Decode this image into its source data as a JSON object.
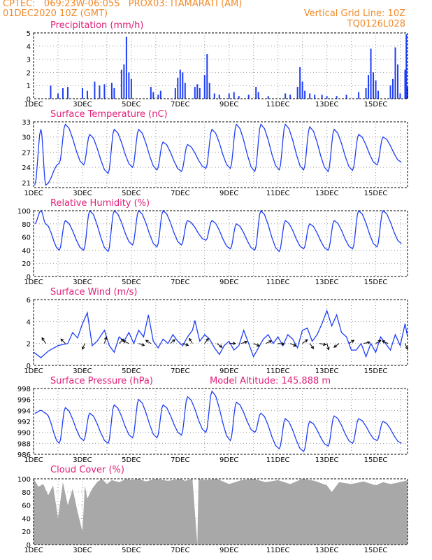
{
  "header": {
    "line1": "CPTEC:   069:23W-06:05S   PROX03: ITAMARATI (AM)",
    "line2": "01DEC2020 10Z (GMT)",
    "grid_note": "Vertical Grid Line: 10Z",
    "code": "TQ0126L028"
  },
  "colors": {
    "header": "#f28a2a",
    "title": "#e0207a",
    "series": "#1f3ff5",
    "cloud": "#a8a8a8",
    "arrow": "#000000"
  },
  "panels": {
    "precip": {
      "title": "Precipitation (mm/h)"
    },
    "temp": {
      "title": "Surface Temperature (nC)"
    },
    "rh": {
      "title": "Relative Humidity (%)"
    },
    "wind": {
      "title": "Surface Wind (m/s)"
    },
    "pres": {
      "title": "Surface Pressure (hPa)",
      "altitude": "Model Altitude: 145.888 m"
    },
    "cloud": {
      "title": "Cloud Cover (%)"
    }
  },
  "chart_data": [
    {
      "panel": "precip",
      "type": "bar",
      "ylim": [
        0,
        5
      ],
      "yticks": [
        0,
        1,
        2,
        3,
        4,
        5
      ],
      "x_ticks": [
        "1DEC",
        "3DEC",
        "5DEC",
        "7DEC",
        "9DEC",
        "11DEC",
        "13DEC",
        "15DEC"
      ],
      "x_unit": "days since 01DEC 10Z",
      "xlim": [
        0,
        15.3
      ],
      "events": [
        [
          0.7,
          1.0
        ],
        [
          1.0,
          0.4
        ],
        [
          1.2,
          0.8
        ],
        [
          1.4,
          0.9
        ],
        [
          2.0,
          0.8
        ],
        [
          2.2,
          0.6
        ],
        [
          2.5,
          1.3
        ],
        [
          2.7,
          1.0
        ],
        [
          2.9,
          1.1
        ],
        [
          3.2,
          1.2
        ],
        [
          3.3,
          0.8
        ],
        [
          3.6,
          2.2
        ],
        [
          3.7,
          2.6
        ],
        [
          3.8,
          4.7
        ],
        [
          3.9,
          2.0
        ],
        [
          4.0,
          1.5
        ],
        [
          4.8,
          0.9
        ],
        [
          4.9,
          0.5
        ],
        [
          5.1,
          0.3
        ],
        [
          5.2,
          0.6
        ],
        [
          5.8,
          0.8
        ],
        [
          5.9,
          1.6
        ],
        [
          6.0,
          2.2
        ],
        [
          6.1,
          2.0
        ],
        [
          6.2,
          1.2
        ],
        [
          6.6,
          0.9
        ],
        [
          6.7,
          1.1
        ],
        [
          6.8,
          0.8
        ],
        [
          7.0,
          1.8
        ],
        [
          7.1,
          3.4
        ],
        [
          7.2,
          1.2
        ],
        [
          7.4,
          0.4
        ],
        [
          7.6,
          0.3
        ],
        [
          8.0,
          0.4
        ],
        [
          8.2,
          0.5
        ],
        [
          8.4,
          0.2
        ],
        [
          8.8,
          0.3
        ],
        [
          9.1,
          0.9
        ],
        [
          9.2,
          0.5
        ],
        [
          9.6,
          0.2
        ],
        [
          10.3,
          0.4
        ],
        [
          10.5,
          0.3
        ],
        [
          10.8,
          0.9
        ],
        [
          10.9,
          2.4
        ],
        [
          11.0,
          1.3
        ],
        [
          11.1,
          0.6
        ],
        [
          11.3,
          0.4
        ],
        [
          11.5,
          0.3
        ],
        [
          11.8,
          0.3
        ],
        [
          12.0,
          0.2
        ],
        [
          12.4,
          0.2
        ],
        [
          12.8,
          0.3
        ],
        [
          13.3,
          0.5
        ],
        [
          13.6,
          0.8
        ],
        [
          13.7,
          1.8
        ],
        [
          13.8,
          3.8
        ],
        [
          13.9,
          2.0
        ],
        [
          14.0,
          1.4
        ],
        [
          14.1,
          0.6
        ],
        [
          14.6,
          1.0
        ],
        [
          14.7,
          1.5
        ],
        [
          14.8,
          3.9
        ],
        [
          14.9,
          2.6
        ],
        [
          15.0,
          0.4
        ],
        [
          15.2,
          2.2
        ],
        [
          15.25,
          4.9
        ],
        [
          15.3,
          0.9
        ]
      ]
    },
    {
      "panel": "temp",
      "type": "line",
      "ylim": [
        20,
        33
      ],
      "yticks": [
        21,
        24,
        27,
        30,
        33
      ],
      "x_ticks": [
        "1DEC",
        "3DEC",
        "5DEC",
        "7DEC",
        "9DEC",
        "11DEC",
        "13DEC",
        "15DEC"
      ],
      "x_unit": "days since 01DEC 10Z",
      "xlim": [
        0,
        15.3
      ],
      "daily_min": [
        20.5,
        24.8,
        24.5,
        22.8,
        24.0,
        23.5,
        23.2,
        23.8,
        23.8,
        23.2,
        23.5,
        23.5,
        23.2,
        23.4,
        24.5,
        25.0
      ],
      "daily_max": [
        null,
        31.5,
        32.5,
        30.5,
        31.5,
        31.5,
        29.0,
        28.5,
        31.5,
        32.5,
        32.5,
        32.5,
        32.0,
        31.5,
        30.5,
        30.0
      ]
    },
    {
      "panel": "rh",
      "type": "line",
      "ylim": [
        0,
        100
      ],
      "yticks": [
        0,
        20,
        40,
        60,
        80,
        100
      ],
      "x_ticks": [
        "1DEC",
        "3DEC",
        "5DEC",
        "7DEC",
        "9DEC",
        "11DEC",
        "13DEC",
        "15DEC"
      ],
      "x_unit": "days since 01DEC 10Z",
      "xlim": [
        0,
        15.3
      ],
      "daily_max": [
        100,
        100,
        85,
        100,
        100,
        100,
        100,
        85,
        85,
        80,
        100,
        85,
        80,
        85,
        100,
        100
      ],
      "daily_min": [
        80,
        40,
        40,
        38,
        48,
        45,
        48,
        55,
        42,
        40,
        38,
        42,
        40,
        42,
        45,
        50
      ]
    },
    {
      "panel": "wind",
      "type": "line",
      "ylim": [
        0,
        6
      ],
      "yticks": [
        0,
        2,
        4,
        6
      ],
      "x_ticks": [
        "1DEC",
        "3DEC",
        "5DEC",
        "7DEC",
        "9DEC",
        "11DEC",
        "13DEC",
        "15DEC"
      ],
      "x_unit": "days since 01DEC 10Z",
      "xlim": [
        0,
        15.3
      ],
      "speed": [
        [
          0,
          1.2
        ],
        [
          0.3,
          0.7
        ],
        [
          0.6,
          1.3
        ],
        [
          1.0,
          1.8
        ],
        [
          1.4,
          2.0
        ],
        [
          1.6,
          3.0
        ],
        [
          1.8,
          2.5
        ],
        [
          2.0,
          3.8
        ],
        [
          2.2,
          4.8
        ],
        [
          2.4,
          1.8
        ],
        [
          2.6,
          2.2
        ],
        [
          2.9,
          3.2
        ],
        [
          3.1,
          1.8
        ],
        [
          3.3,
          1.2
        ],
        [
          3.5,
          2.6
        ],
        [
          3.7,
          2.2
        ],
        [
          3.9,
          3.0
        ],
        [
          4.1,
          2.0
        ],
        [
          4.3,
          3.2
        ],
        [
          4.5,
          2.6
        ],
        [
          4.7,
          4.6
        ],
        [
          4.9,
          2.2
        ],
        [
          5.1,
          1.6
        ],
        [
          5.3,
          2.4
        ],
        [
          5.5,
          2.0
        ],
        [
          5.7,
          2.8
        ],
        [
          5.9,
          2.2
        ],
        [
          6.1,
          1.8
        ],
        [
          6.3,
          2.6
        ],
        [
          6.5,
          3.2
        ],
        [
          6.6,
          4.1
        ],
        [
          6.8,
          2.2
        ],
        [
          7.0,
          2.8
        ],
        [
          7.2,
          2.4
        ],
        [
          7.4,
          1.6
        ],
        [
          7.6,
          1.0
        ],
        [
          7.8,
          1.8
        ],
        [
          8.0,
          2.2
        ],
        [
          8.2,
          1.4
        ],
        [
          8.4,
          1.8
        ],
        [
          8.6,
          3.2
        ],
        [
          8.8,
          2.0
        ],
        [
          9.0,
          0.8
        ],
        [
          9.2,
          1.6
        ],
        [
          9.4,
          2.4
        ],
        [
          9.6,
          2.8
        ],
        [
          9.8,
          2.0
        ],
        [
          10.0,
          2.6
        ],
        [
          10.2,
          1.8
        ],
        [
          10.4,
          2.8
        ],
        [
          10.6,
          2.4
        ],
        [
          10.8,
          1.6
        ],
        [
          11.0,
          3.2
        ],
        [
          11.2,
          3.4
        ],
        [
          11.4,
          2.2
        ],
        [
          11.6,
          2.8
        ],
        [
          11.8,
          3.8
        ],
        [
          12.0,
          5.0
        ],
        [
          12.2,
          3.6
        ],
        [
          12.4,
          4.6
        ],
        [
          12.6,
          3.0
        ],
        [
          12.8,
          2.6
        ],
        [
          13.0,
          1.4
        ],
        [
          13.2,
          1.4
        ],
        [
          13.4,
          2.0
        ],
        [
          13.6,
          0.8
        ],
        [
          13.8,
          2.0
        ],
        [
          14.0,
          1.2
        ],
        [
          14.2,
          2.6
        ],
        [
          14.4,
          2.0
        ],
        [
          14.6,
          1.4
        ],
        [
          14.8,
          2.8
        ],
        [
          15.0,
          1.8
        ],
        [
          15.2,
          3.8
        ],
        [
          15.3,
          2.6
        ]
      ],
      "vectors": [
        {
          "x": 0.5,
          "u": -0.6,
          "v": 0.9
        },
        {
          "x": 1.3,
          "u": -0.7,
          "v": 0.7
        },
        {
          "x": 2.1,
          "u": -0.4,
          "v": -0.9
        },
        {
          "x": 2.9,
          "u": 0.3,
          "v": 1.0
        },
        {
          "x": 3.5,
          "u": 0.7,
          "v": 0.7
        },
        {
          "x": 3.9,
          "u": -0.9,
          "v": 0.4
        },
        {
          "x": 4.3,
          "u": 0.9,
          "v": -0.3
        },
        {
          "x": 4.8,
          "u": -0.8,
          "v": 0.5
        },
        {
          "x": 5.6,
          "u": 0.7,
          "v": 0.6
        },
        {
          "x": 6.1,
          "u": 0.9,
          "v": -0.3
        },
        {
          "x": 6.5,
          "u": -0.5,
          "v": 0.8
        },
        {
          "x": 7.0,
          "u": 0.6,
          "v": 0.8
        },
        {
          "x": 7.5,
          "u": 0.8,
          "v": -0.6
        },
        {
          "x": 8.0,
          "u": 1.0,
          "v": 0.0
        },
        {
          "x": 8.5,
          "u": 0.9,
          "v": 0.3
        },
        {
          "x": 9.0,
          "u": 0.9,
          "v": -0.4
        },
        {
          "x": 9.5,
          "u": 0.9,
          "v": 0.4
        },
        {
          "x": 10.0,
          "u": 1.0,
          "v": -0.1
        },
        {
          "x": 10.5,
          "u": 0.9,
          "v": -0.4
        },
        {
          "x": 11.0,
          "u": 0.8,
          "v": 0.6
        },
        {
          "x": 11.3,
          "u": 0.6,
          "v": -0.8
        },
        {
          "x": 11.7,
          "u": 1.0,
          "v": -0.2
        },
        {
          "x": 12.0,
          "u": 0.3,
          "v": -1.0
        },
        {
          "x": 12.5,
          "u": -0.8,
          "v": -0.6
        },
        {
          "x": 12.9,
          "u": 0.8,
          "v": 0.5
        },
        {
          "x": 13.5,
          "u": 1.0,
          "v": 0.2
        },
        {
          "x": 14.0,
          "u": 0.8,
          "v": 0.5
        },
        {
          "x": 14.5,
          "u": -0.9,
          "v": 0.4
        },
        {
          "x": 15.2,
          "u": 0.4,
          "v": -0.9
        }
      ]
    },
    {
      "panel": "pres",
      "type": "line",
      "ylim": [
        986,
        998
      ],
      "yticks": [
        986,
        988,
        990,
        992,
        994,
        996,
        998
      ],
      "x_ticks": [
        "1DEC",
        "3DEC",
        "5DEC",
        "7DEC",
        "9DEC",
        "11DEC",
        "13DEC",
        "15DEC"
      ],
      "x_unit": "days since 01DEC 10Z",
      "xlim": [
        0,
        15.3
      ],
      "daily_max": [
        996.0,
        994.0,
        994.5,
        993.5,
        995.0,
        996.0,
        995.0,
        996.5,
        997.5,
        995.5,
        993.5,
        992.5,
        992.0,
        993.0,
        992.5,
        992.0
      ],
      "daily_min": [
        993.5,
        988.0,
        988.5,
        988.0,
        989.0,
        989.0,
        989.5,
        990.0,
        988.5,
        990.0,
        987.0,
        986.5,
        987.5,
        988.0,
        988.5,
        988.0
      ]
    },
    {
      "panel": "cloud",
      "type": "area",
      "ylim": [
        0,
        100
      ],
      "yticks": [
        0,
        20,
        40,
        60,
        80,
        100
      ],
      "x_ticks": [
        "1DEC",
        "3DEC",
        "5DEC",
        "7DEC",
        "9DEC",
        "11DEC",
        "13DEC",
        "15DEC"
      ],
      "x_unit": "days since 01DEC 10Z",
      "xlim": [
        0,
        15.3
      ],
      "points": [
        [
          0,
          100
        ],
        [
          0.2,
          88
        ],
        [
          0.4,
          92
        ],
        [
          0.6,
          75
        ],
        [
          0.8,
          90
        ],
        [
          1.0,
          40
        ],
        [
          1.2,
          95
        ],
        [
          1.4,
          60
        ],
        [
          1.6,
          85
        ],
        [
          1.8,
          50
        ],
        [
          2.0,
          20
        ],
        [
          2.1,
          90
        ],
        [
          2.2,
          70
        ],
        [
          2.4,
          85
        ],
        [
          2.6,
          95
        ],
        [
          2.8,
          100
        ],
        [
          3.0,
          92
        ],
        [
          3.2,
          98
        ],
        [
          3.5,
          95
        ],
        [
          3.8,
          100
        ],
        [
          4.0,
          98
        ],
        [
          4.3,
          100
        ],
        [
          4.6,
          96
        ],
        [
          5.0,
          100
        ],
        [
          5.5,
          97
        ],
        [
          6.0,
          100
        ],
        [
          6.2,
          97
        ],
        [
          6.5,
          100
        ],
        [
          6.7,
          0
        ],
        [
          6.75,
          100
        ],
        [
          7.0,
          98
        ],
        [
          7.5,
          100
        ],
        [
          8.0,
          92
        ],
        [
          8.5,
          98
        ],
        [
          9.0,
          100
        ],
        [
          9.5,
          95
        ],
        [
          10.0,
          98
        ],
        [
          10.5,
          92
        ],
        [
          11.0,
          100
        ],
        [
          11.5,
          97
        ],
        [
          12.0,
          90
        ],
        [
          12.2,
          80
        ],
        [
          12.5,
          95
        ],
        [
          13.0,
          92
        ],
        [
          13.5,
          96
        ],
        [
          14.0,
          90
        ],
        [
          14.3,
          95
        ],
        [
          14.6,
          92
        ],
        [
          15.0,
          95
        ],
        [
          15.3,
          98
        ]
      ]
    }
  ]
}
